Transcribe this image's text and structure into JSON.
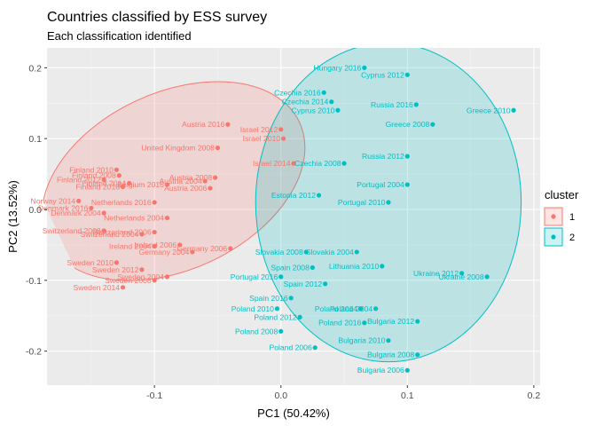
{
  "chart_data": {
    "type": "scatter",
    "title": "Countries classified by ESS survey",
    "subtitle": "Each classification identified",
    "xlabel": "PC1 (50.42%)",
    "ylabel": "PC2 (13.52%)",
    "xlim": [
      -0.185,
      0.205
    ],
    "ylim": [
      -0.248,
      0.228
    ],
    "xticks": [
      -0.1,
      0.0,
      0.1,
      0.2
    ],
    "xtick_labels": [
      "-0.1",
      "0.0",
      "0.1",
      "0.2"
    ],
    "yticks": [
      -0.2,
      -0.1,
      0.0,
      0.1,
      0.2
    ],
    "ytick_labels": [
      "-0.2",
      "-0.1",
      "0.0",
      "0.1",
      "0.2"
    ],
    "grid": true,
    "legend": {
      "title": "cluster",
      "position": "right",
      "entries": [
        {
          "label": "1",
          "color": "#F8766D"
        },
        {
          "label": "2",
          "color": "#00BFC4"
        }
      ]
    },
    "colors": {
      "1": "#F8766D",
      "2": "#00BFC4",
      "panel": "#EBEBEB",
      "grid_major": "#FFFFFF",
      "grid_minor": "#F5F5F5"
    },
    "ellipses": [
      {
        "cluster": "1",
        "center": [
          -0.085,
          0.04
        ],
        "semi_axes": [
          0.11,
          0.125
        ],
        "angle_deg": 25
      },
      {
        "cluster": "2",
        "center": [
          0.085,
          0.01
        ],
        "semi_axes": [
          0.105,
          0.225
        ],
        "angle_deg": 0
      }
    ],
    "series": [
      {
        "name": "1",
        "points": [
          {
            "label": "Austria 2016",
            "x": -0.042,
            "y": 0.12
          },
          {
            "label": "Israel 2012",
            "x": 0.0,
            "y": 0.113
          },
          {
            "label": "Israel 2010",
            "x": 0.002,
            "y": 0.1
          },
          {
            "label": "United Kingdom 2008",
            "x": -0.05,
            "y": 0.087
          },
          {
            "label": "Israel 2014",
            "x": 0.01,
            "y": 0.065
          },
          {
            "label": "Finland 2010",
            "x": -0.13,
            "y": 0.056
          },
          {
            "label": "Finland 2008",
            "x": -0.128,
            "y": 0.048
          },
          {
            "label": "Finland 2012",
            "x": -0.14,
            "y": 0.042
          },
          {
            "label": "Finland 2014",
            "x": -0.12,
            "y": 0.037
          },
          {
            "label": "Finland 2016",
            "x": -0.125,
            "y": 0.032
          },
          {
            "label": "Belgium 2016",
            "x": -0.09,
            "y": 0.035
          },
          {
            "label": "Austria 2004",
            "x": -0.06,
            "y": 0.04
          },
          {
            "label": "Austria 2006",
            "x": -0.056,
            "y": 0.03
          },
          {
            "label": "Austria 2008",
            "x": -0.052,
            "y": 0.045
          },
          {
            "label": "Norway 2014",
            "x": -0.16,
            "y": 0.012
          },
          {
            "label": "Denmark 2016",
            "x": -0.15,
            "y": 0.002
          },
          {
            "label": "Denmark 2004",
            "x": -0.14,
            "y": -0.005
          },
          {
            "label": "Netherlands 2016",
            "x": -0.1,
            "y": 0.01
          },
          {
            "label": "Netherlands 2004",
            "x": -0.09,
            "y": -0.012
          },
          {
            "label": "Switzerland 2008",
            "x": -0.14,
            "y": -0.03
          },
          {
            "label": "Switzerland 2006",
            "x": -0.1,
            "y": -0.032
          },
          {
            "label": "Switzerland 2004",
            "x": -0.11,
            "y": -0.035
          },
          {
            "label": "Ireland 2004",
            "x": -0.1,
            "y": -0.052
          },
          {
            "label": "Ireland 2006",
            "x": -0.08,
            "y": -0.05
          },
          {
            "label": "Germany 2004",
            "x": -0.07,
            "y": -0.06
          },
          {
            "label": "Germany 2006",
            "x": -0.04,
            "y": -0.055
          },
          {
            "label": "Sweden 2010",
            "x": -0.13,
            "y": -0.075
          },
          {
            "label": "Sweden 2012",
            "x": -0.11,
            "y": -0.085
          },
          {
            "label": "Sweden 2004",
            "x": -0.09,
            "y": -0.095
          },
          {
            "label": "Sweden 2008",
            "x": -0.1,
            "y": -0.1
          },
          {
            "label": "Sweden 2014",
            "x": -0.125,
            "y": -0.11
          }
        ]
      },
      {
        "name": "2",
        "points": [
          {
            "label": "Hungary 2016",
            "x": 0.066,
            "y": 0.2
          },
          {
            "label": "Cyprus 2012",
            "x": 0.1,
            "y": 0.19
          },
          {
            "label": "Greece 2010",
            "x": 0.184,
            "y": 0.14
          },
          {
            "label": "Czechia 2016",
            "x": 0.034,
            "y": 0.165
          },
          {
            "label": "Czechia 2014",
            "x": 0.04,
            "y": 0.152
          },
          {
            "label": "Cyprus 2010",
            "x": 0.045,
            "y": 0.14
          },
          {
            "label": "Russia 2016",
            "x": 0.107,
            "y": 0.148
          },
          {
            "label": "Greece 2008",
            "x": 0.12,
            "y": 0.12
          },
          {
            "label": "Russia 2012",
            "x": 0.1,
            "y": 0.075
          },
          {
            "label": "Czechia 2008",
            "x": 0.05,
            "y": 0.065
          },
          {
            "label": "Portugal 2004",
            "x": 0.1,
            "y": 0.035
          },
          {
            "label": "Portugal 2010",
            "x": 0.085,
            "y": 0.01
          },
          {
            "label": "Estonia 2012",
            "x": 0.03,
            "y": 0.02
          },
          {
            "label": "Slovakia 2004",
            "x": 0.06,
            "y": -0.06
          },
          {
            "label": "Lithuania 2010",
            "x": 0.08,
            "y": -0.08
          },
          {
            "label": "Ukraine 2012",
            "x": 0.143,
            "y": -0.09
          },
          {
            "label": "Ukraine 2008",
            "x": 0.163,
            "y": -0.095
          },
          {
            "label": "Slovakia 2008",
            "x": 0.02,
            "y": -0.06
          },
          {
            "label": "Spain 2008",
            "x": 0.025,
            "y": -0.082
          },
          {
            "label": "Spain 2012",
            "x": 0.035,
            "y": -0.105
          },
          {
            "label": "Portugal 2016",
            "x": 0.0,
            "y": -0.095
          },
          {
            "label": "Spain 2016",
            "x": 0.008,
            "y": -0.125
          },
          {
            "label": "Poland 2010",
            "x": -0.003,
            "y": -0.14
          },
          {
            "label": "Poland 2012",
            "x": 0.015,
            "y": -0.152
          },
          {
            "label": "Poland 2008",
            "x": 0.0,
            "y": -0.172
          },
          {
            "label": "Poland 2006",
            "x": 0.027,
            "y": -0.195
          },
          {
            "label": "Poland 2014",
            "x": 0.063,
            "y": -0.14
          },
          {
            "label": "Poland 2004",
            "x": 0.075,
            "y": -0.14
          },
          {
            "label": "Poland 2016",
            "x": 0.066,
            "y": -0.16
          },
          {
            "label": "Bulgaria 2012",
            "x": 0.108,
            "y": -0.158
          },
          {
            "label": "Bulgaria 2010",
            "x": 0.085,
            "y": -0.185
          },
          {
            "label": "Bulgaria 2008",
            "x": 0.108,
            "y": -0.205
          },
          {
            "label": "Bulgaria 2006",
            "x": 0.1,
            "y": -0.227
          }
        ]
      }
    ]
  }
}
